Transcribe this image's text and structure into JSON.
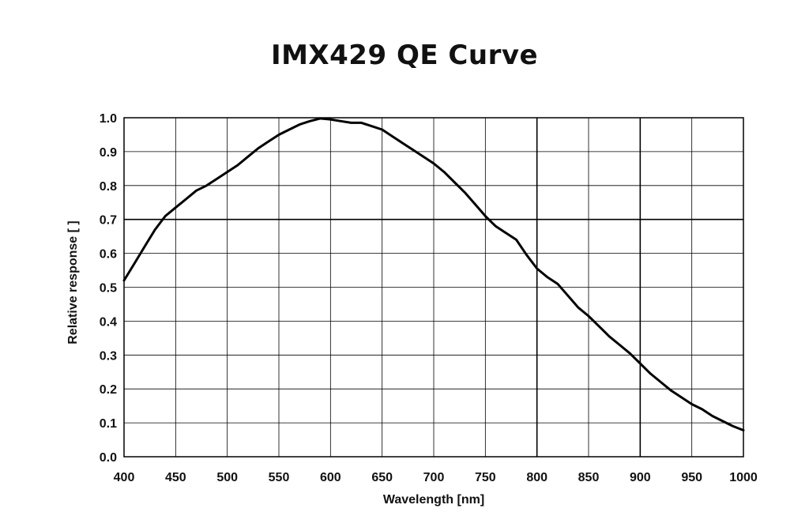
{
  "chart_data": {
    "type": "line",
    "title": "IMX429 QE Curve",
    "xlabel": "Wavelength [nm]",
    "ylabel": "Relative response [ ]",
    "xlim": [
      400,
      1000
    ],
    "ylim": [
      0.0,
      1.0
    ],
    "grid": true,
    "x_ticks": [
      "400",
      "450",
      "500",
      "550",
      "600",
      "650",
      "700",
      "750",
      "800",
      "850",
      "900",
      "950",
      "1000"
    ],
    "y_ticks": [
      "0.0",
      "0.1",
      "0.2",
      "0.3",
      "0.4",
      "0.5",
      "0.6",
      "0.7",
      "0.8",
      "0.9",
      "1.0"
    ],
    "emphasized_gridlines": {
      "x": [
        800,
        900
      ],
      "y": [
        0.7
      ]
    },
    "colors": {
      "line": "#000000",
      "grid": "#000000",
      "background": "#ffffff"
    },
    "series": [
      {
        "x": [
          400,
          410,
          420,
          430,
          440,
          450,
          460,
          470,
          480,
          490,
          500,
          510,
          520,
          530,
          540,
          550,
          560,
          570,
          580,
          590,
          600,
          610,
          620,
          630,
          640,
          650,
          660,
          670,
          680,
          690,
          700,
          710,
          720,
          730,
          740,
          750,
          760,
          770,
          780,
          790,
          800,
          810,
          820,
          830,
          840,
          850,
          860,
          870,
          880,
          890,
          900,
          910,
          920,
          930,
          940,
          950,
          960,
          970,
          980,
          990,
          1000
        ],
        "y": [
          0.52,
          0.57,
          0.62,
          0.67,
          0.71,
          0.735,
          0.76,
          0.785,
          0.8,
          0.82,
          0.84,
          0.86,
          0.885,
          0.91,
          0.93,
          0.95,
          0.965,
          0.98,
          0.99,
          0.998,
          0.995,
          0.99,
          0.985,
          0.985,
          0.975,
          0.965,
          0.945,
          0.925,
          0.905,
          0.885,
          0.865,
          0.84,
          0.81,
          0.78,
          0.745,
          0.71,
          0.68,
          0.66,
          0.64,
          0.595,
          0.555,
          0.53,
          0.51,
          0.475,
          0.44,
          0.415,
          0.385,
          0.355,
          0.33,
          0.305,
          0.275,
          0.245,
          0.22,
          0.195,
          0.175,
          0.155,
          0.14,
          0.12,
          0.105,
          0.09,
          0.078
        ]
      }
    ]
  }
}
